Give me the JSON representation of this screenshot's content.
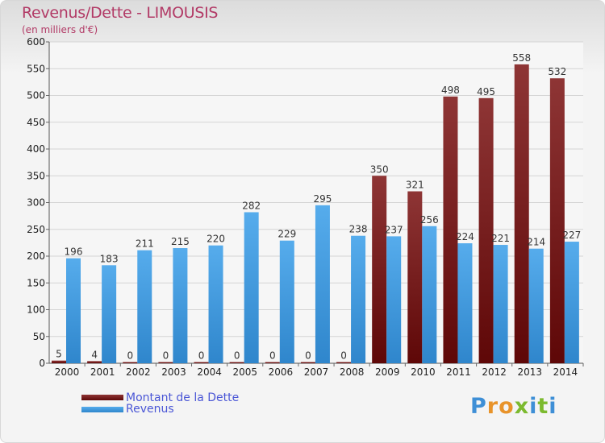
{
  "chart_data": {
    "type": "bar",
    "title": "Revenus/Dette - LIMOUSIS",
    "subtitle": "(en milliers d'€)",
    "categories": [
      "2000",
      "2001",
      "2002",
      "2003",
      "2004",
      "2005",
      "2006",
      "2007",
      "2008",
      "2009",
      "2010",
      "2011",
      "2012",
      "2013",
      "2014"
    ],
    "series": [
      {
        "name": "Montant de la Dette",
        "color": "#7a1a1a",
        "values": [
          5,
          4,
          0,
          0,
          0,
          0,
          0,
          0,
          0,
          350,
          321,
          498,
          495,
          558,
          532
        ]
      },
      {
        "name": "Revenus",
        "color": "#4aa3e3",
        "values": [
          196,
          183,
          211,
          215,
          220,
          282,
          229,
          295,
          238,
          237,
          256,
          224,
          221,
          214,
          227
        ]
      }
    ],
    "ylim": [
      0,
      600
    ],
    "yticks": [
      0,
      50,
      100,
      150,
      200,
      250,
      300,
      350,
      400,
      450,
      500,
      550,
      600
    ],
    "grid": true,
    "legend": "bottom-left"
  },
  "logo": {
    "letters": [
      "P",
      "r",
      "o",
      "x",
      "i",
      "t",
      "i"
    ],
    "colors": [
      "#3e8fd6",
      "#e8932a",
      "#e8932a",
      "#7cba2f",
      "#3e8fd6",
      "#7cba2f",
      "#3e8fd6"
    ]
  }
}
